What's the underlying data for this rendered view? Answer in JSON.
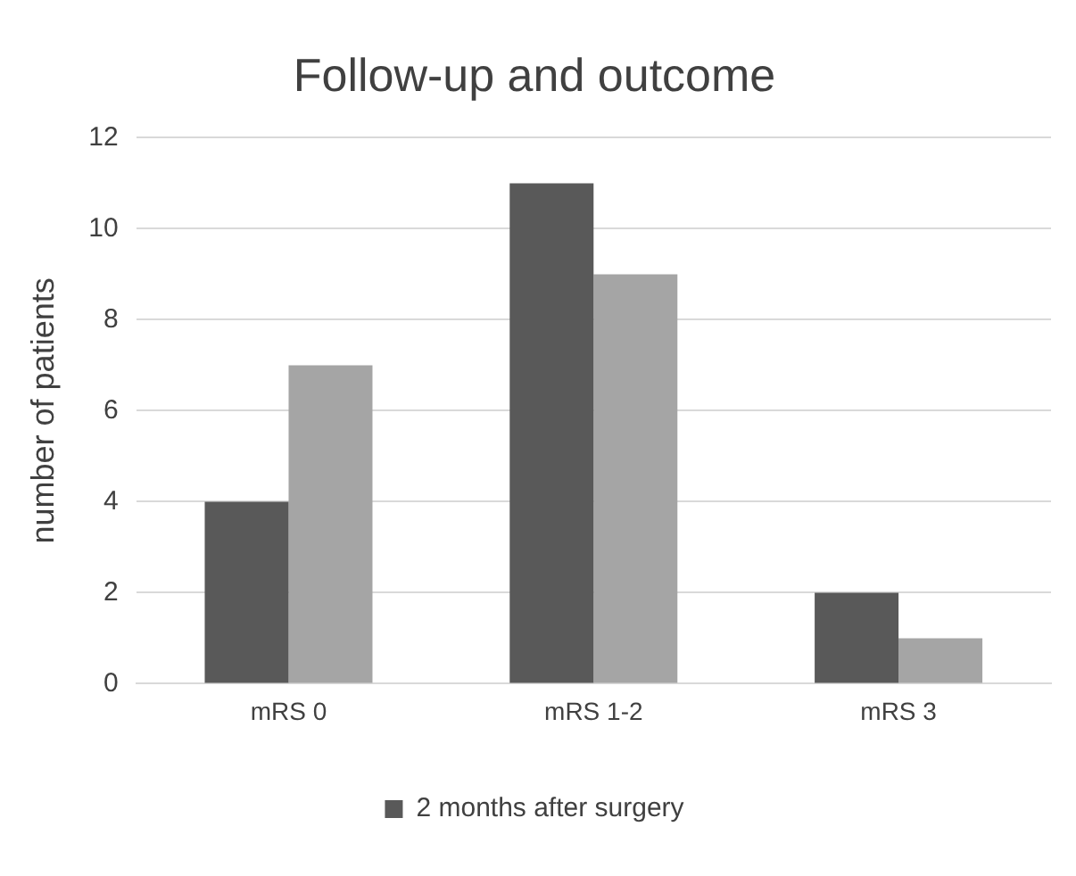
{
  "chart_data": {
    "type": "bar",
    "title": "Follow-up and outcome",
    "ylabel": "number of patients",
    "categories": [
      "mRS 0",
      "mRS 1-2",
      "mRS 3"
    ],
    "series": [
      {
        "name": "2 months after surgery",
        "color": "#595959",
        "values": [
          4,
          11,
          2
        ]
      },
      {
        "color": "#a5a5a5",
        "values": [
          7,
          9,
          1
        ]
      }
    ],
    "ylim": [
      0,
      12
    ],
    "yticks": [
      0,
      2,
      4,
      6,
      8,
      10,
      12
    ],
    "grid": "y",
    "legend": "bottom"
  }
}
